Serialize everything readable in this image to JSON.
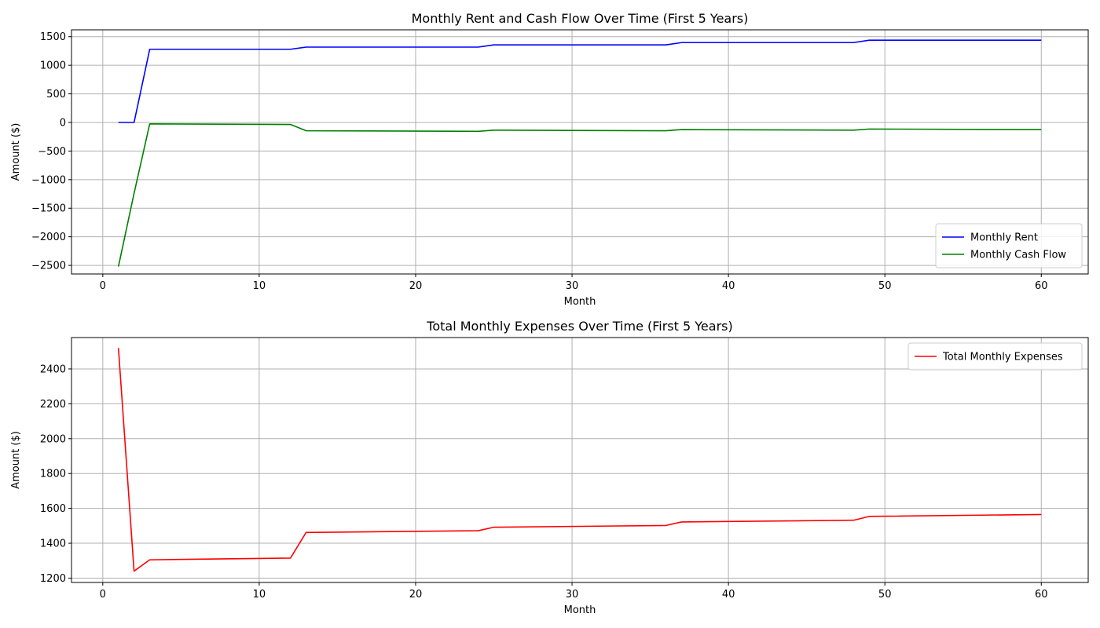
{
  "chart_data": [
    {
      "type": "line",
      "title": "Monthly Rent and Cash Flow Over Time (First 5 Years)",
      "xlabel": "Month",
      "ylabel": "Amount ($)",
      "xlim": [
        -2,
        63
      ],
      "ylim": [
        -2650,
        1620
      ],
      "xticks": [
        0,
        10,
        20,
        30,
        40,
        50,
        60
      ],
      "yticks": [
        -2500,
        -2000,
        -1500,
        -1000,
        -500,
        0,
        500,
        1000,
        1500
      ],
      "grid": true,
      "legend_position": "lower-right",
      "series": [
        {
          "name": "Monthly Rent",
          "color": "#0000ff",
          "x": [
            1,
            2,
            3,
            12,
            13,
            24,
            25,
            36,
            37,
            48,
            49,
            60
          ],
          "y": [
            0,
            0,
            1280,
            1280,
            1318,
            1318,
            1357,
            1357,
            1397,
            1397,
            1439,
            1439
          ]
        },
        {
          "name": "Monthly Cash Flow",
          "color": "#008000",
          "x": [
            1,
            2,
            3,
            12,
            13,
            24,
            25,
            36,
            37,
            48,
            49,
            60
          ],
          "y": [
            -2520,
            -1240,
            -25,
            -35,
            -145,
            -155,
            -135,
            -145,
            -125,
            -135,
            -115,
            -125
          ]
        }
      ]
    },
    {
      "type": "line",
      "title": "Total Monthly Expenses Over Time (First 5 Years)",
      "xlabel": "Month",
      "ylabel": "Amount ($)",
      "xlim": [
        -2,
        63
      ],
      "ylim": [
        1175,
        2580
      ],
      "xticks": [
        0,
        10,
        20,
        30,
        40,
        50,
        60
      ],
      "yticks": [
        1200,
        1400,
        1600,
        1800,
        2000,
        2200,
        2400
      ],
      "grid": true,
      "legend_position": "upper-right",
      "series": [
        {
          "name": "Total Monthly Expenses",
          "color": "#ff0000",
          "x": [
            1,
            2,
            3,
            12,
            13,
            24,
            25,
            36,
            37,
            48,
            49,
            60
          ],
          "y": [
            2520,
            1240,
            1305,
            1315,
            1462,
            1472,
            1492,
            1502,
            1522,
            1532,
            1554,
            1565
          ]
        }
      ]
    }
  ]
}
